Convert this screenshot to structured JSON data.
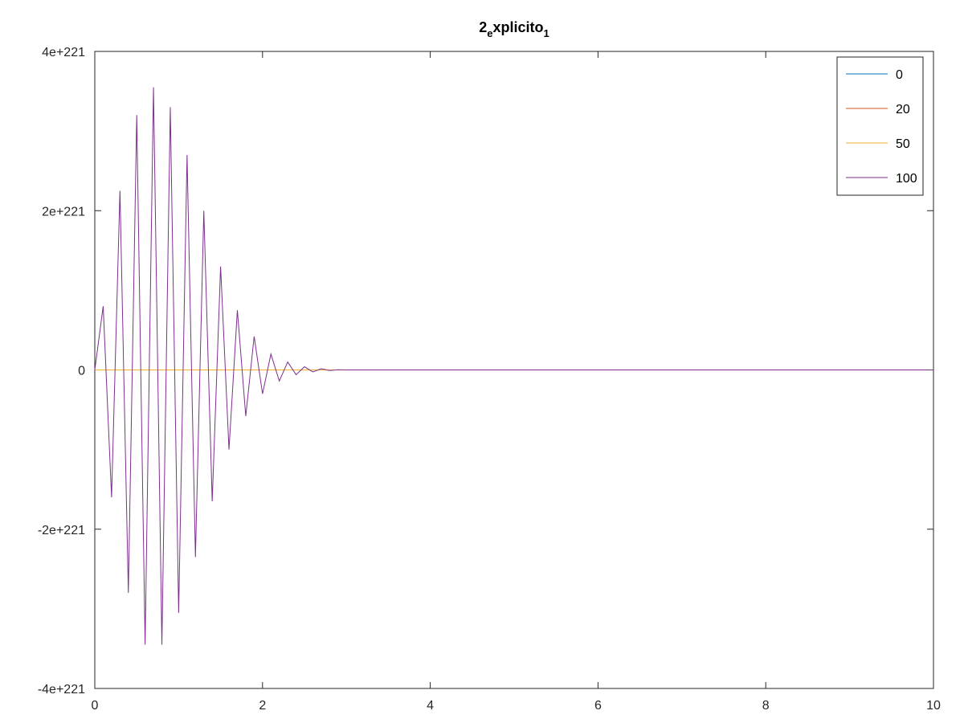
{
  "chart_data": {
    "type": "line",
    "title": {
      "main": "2",
      "sub1": "e",
      "mid": "xplicito",
      "sub2": "1"
    },
    "xlabel": "",
    "ylabel": "",
    "xlim": [
      0,
      10
    ],
    "ylim": [
      -4e+221,
      4e+221
    ],
    "x_ticks": [
      0,
      2,
      4,
      6,
      8,
      10
    ],
    "x_tick_labels": [
      "0",
      "2",
      "4",
      "6",
      "8",
      "10"
    ],
    "y_ticks": [
      -4e+221,
      -2e+221,
      0,
      2e+221,
      4e+221
    ],
    "y_tick_labels": [
      "-4e+221",
      "-2e+221",
      "0",
      "2e+221",
      "4e+221"
    ],
    "grid": false,
    "legend_position": "top-right",
    "series": [
      {
        "name": "0",
        "color": "#0072bd",
        "x": [
          0,
          10
        ],
        "y": [
          0,
          0
        ]
      },
      {
        "name": "20",
        "color": "#d95319",
        "x": [
          0,
          10
        ],
        "y": [
          0,
          0
        ]
      },
      {
        "name": "50",
        "color": "#edb120",
        "x": [
          0,
          10
        ],
        "y": [
          0,
          0
        ]
      },
      {
        "name": "100",
        "color": "#7e2f8e",
        "x": [
          0,
          0.1,
          0.2,
          0.3,
          0.4,
          0.5,
          0.6,
          0.7,
          0.8,
          0.9,
          1.0,
          1.1,
          1.2,
          1.3,
          1.4,
          1.5,
          1.6,
          1.7,
          1.8,
          1.9,
          2.0,
          2.1,
          2.2,
          2.3,
          2.4,
          2.5,
          2.6,
          2.7,
          2.8,
          2.9,
          3.0,
          10
        ],
        "y": [
          0,
          8e+220,
          -1.6e+221,
          2.25e+221,
          -2.8e+221,
          3.2e+221,
          -3.45e+221,
          3.55e+221,
          -3.45e+221,
          3.3e+221,
          -3.05e+221,
          2.7e+221,
          -2.35e+221,
          2e+221,
          -1.65e+221,
          1.3e+221,
          -1e+221,
          7.5e+220,
          -5.8e+220,
          4.2e+220,
          -3e+220,
          2e+220,
          -1.4e+220,
          1e+220,
          -6e+219,
          4e+219,
          -2.5e+219,
          1.5e+219,
          -8e+218,
          3e+218,
          0,
          0
        ]
      }
    ]
  }
}
